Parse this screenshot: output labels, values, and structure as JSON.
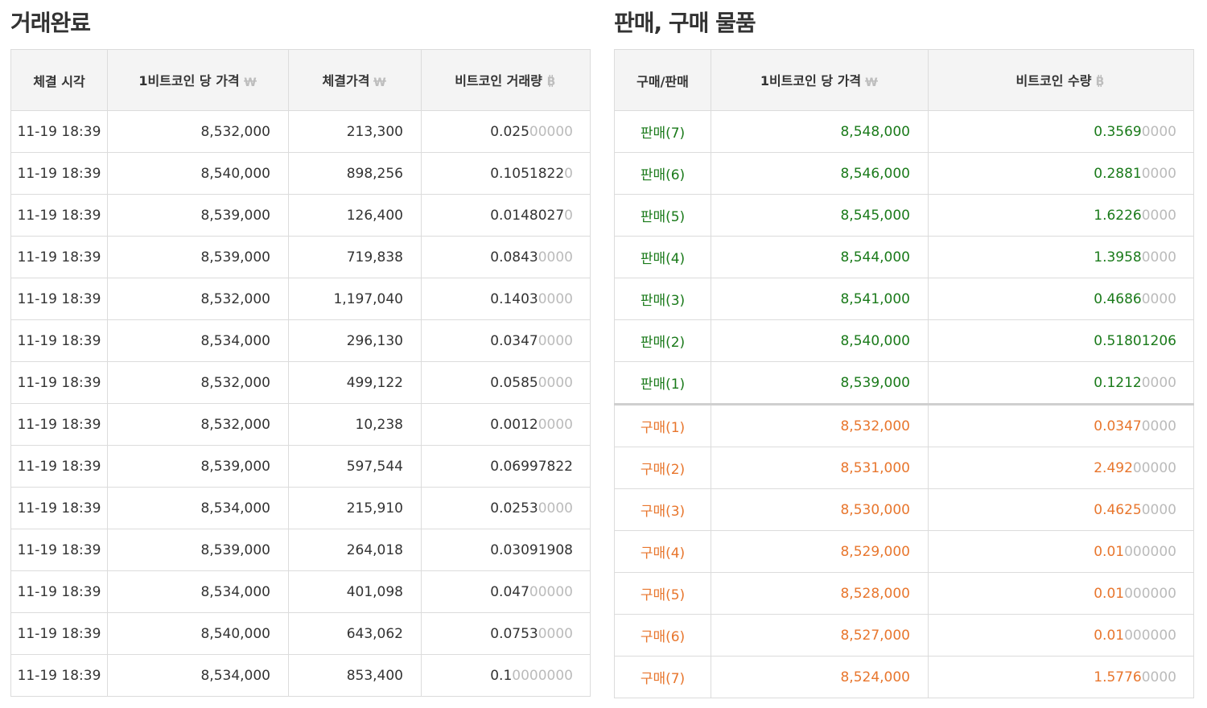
{
  "completed": {
    "title": "거래완료",
    "headers": [
      "체결 시각",
      "1비트코인 당 가격",
      "체결가격",
      "비트코인 거래량"
    ],
    "rows": [
      {
        "time": "11-19 18:39",
        "price": "8,532,000",
        "total": "213,300",
        "qty_main": "0.025",
        "qty_trail": "00000"
      },
      {
        "time": "11-19 18:39",
        "price": "8,540,000",
        "total": "898,256",
        "qty_main": "0.1051822",
        "qty_trail": "0"
      },
      {
        "time": "11-19 18:39",
        "price": "8,539,000",
        "total": "126,400",
        "qty_main": "0.0148027",
        "qty_trail": "0"
      },
      {
        "time": "11-19 18:39",
        "price": "8,539,000",
        "total": "719,838",
        "qty_main": "0.0843",
        "qty_trail": "0000"
      },
      {
        "time": "11-19 18:39",
        "price": "8,532,000",
        "total": "1,197,040",
        "qty_main": "0.1403",
        "qty_trail": "0000"
      },
      {
        "time": "11-19 18:39",
        "price": "8,534,000",
        "total": "296,130",
        "qty_main": "0.0347",
        "qty_trail": "0000"
      },
      {
        "time": "11-19 18:39",
        "price": "8,532,000",
        "total": "499,122",
        "qty_main": "0.0585",
        "qty_trail": "0000"
      },
      {
        "time": "11-19 18:39",
        "price": "8,532,000",
        "total": "10,238",
        "qty_main": "0.0012",
        "qty_trail": "0000"
      },
      {
        "time": "11-19 18:39",
        "price": "8,539,000",
        "total": "597,544",
        "qty_main": "0.06997822",
        "qty_trail": ""
      },
      {
        "time": "11-19 18:39",
        "price": "8,534,000",
        "total": "215,910",
        "qty_main": "0.0253",
        "qty_trail": "0000"
      },
      {
        "time": "11-19 18:39",
        "price": "8,539,000",
        "total": "264,018",
        "qty_main": "0.03091908",
        "qty_trail": ""
      },
      {
        "time": "11-19 18:39",
        "price": "8,534,000",
        "total": "401,098",
        "qty_main": "0.047",
        "qty_trail": "00000"
      },
      {
        "time": "11-19 18:39",
        "price": "8,540,000",
        "total": "643,062",
        "qty_main": "0.0753",
        "qty_trail": "0000"
      },
      {
        "time": "11-19 18:39",
        "price": "8,534,000",
        "total": "853,400",
        "qty_main": "0.1",
        "qty_trail": "0000000"
      }
    ]
  },
  "orderbook": {
    "title": "판매, 구매 물품",
    "headers": [
      "구매/판매",
      "1비트코인 당 가격",
      "비트코인 수량"
    ],
    "asks": [
      {
        "label": "판매(7)",
        "price": "8,548,000",
        "qty_main": "0.3569",
        "qty_trail": "0000"
      },
      {
        "label": "판매(6)",
        "price": "8,546,000",
        "qty_main": "0.2881",
        "qty_trail": "0000"
      },
      {
        "label": "판매(5)",
        "price": "8,545,000",
        "qty_main": "1.6226",
        "qty_trail": "0000"
      },
      {
        "label": "판매(4)",
        "price": "8,544,000",
        "qty_main": "1.3958",
        "qty_trail": "0000"
      },
      {
        "label": "판매(3)",
        "price": "8,541,000",
        "qty_main": "0.4686",
        "qty_trail": "0000"
      },
      {
        "label": "판매(2)",
        "price": "8,540,000",
        "qty_main": "0.51801206",
        "qty_trail": ""
      },
      {
        "label": "판매(1)",
        "price": "8,539,000",
        "qty_main": "0.1212",
        "qty_trail": "0000"
      }
    ],
    "bids": [
      {
        "label": "구매(1)",
        "price": "8,532,000",
        "qty_main": "0.0347",
        "qty_trail": "0000"
      },
      {
        "label": "구매(2)",
        "price": "8,531,000",
        "qty_main": "2.492",
        "qty_trail": "00000"
      },
      {
        "label": "구매(3)",
        "price": "8,530,000",
        "qty_main": "0.4625",
        "qty_trail": "0000"
      },
      {
        "label": "구매(4)",
        "price": "8,529,000",
        "qty_main": "0.01",
        "qty_trail": "000000"
      },
      {
        "label": "구매(5)",
        "price": "8,528,000",
        "qty_main": "0.01",
        "qty_trail": "000000"
      },
      {
        "label": "구매(6)",
        "price": "8,527,000",
        "qty_main": "0.01",
        "qty_trail": "000000"
      },
      {
        "label": "구매(7)",
        "price": "8,524,000",
        "qty_main": "1.5776",
        "qty_trail": "0000"
      }
    ]
  },
  "icons": {
    "currency": "won-sign-icon",
    "coin": "bitcoin-icon"
  },
  "colors": {
    "ask": "#1a7a1a",
    "bid": "#e8762d",
    "trailing_zeros": "#bbbbbb",
    "header_bg": "#f4f4f4",
    "border": "#dcdcdc"
  }
}
